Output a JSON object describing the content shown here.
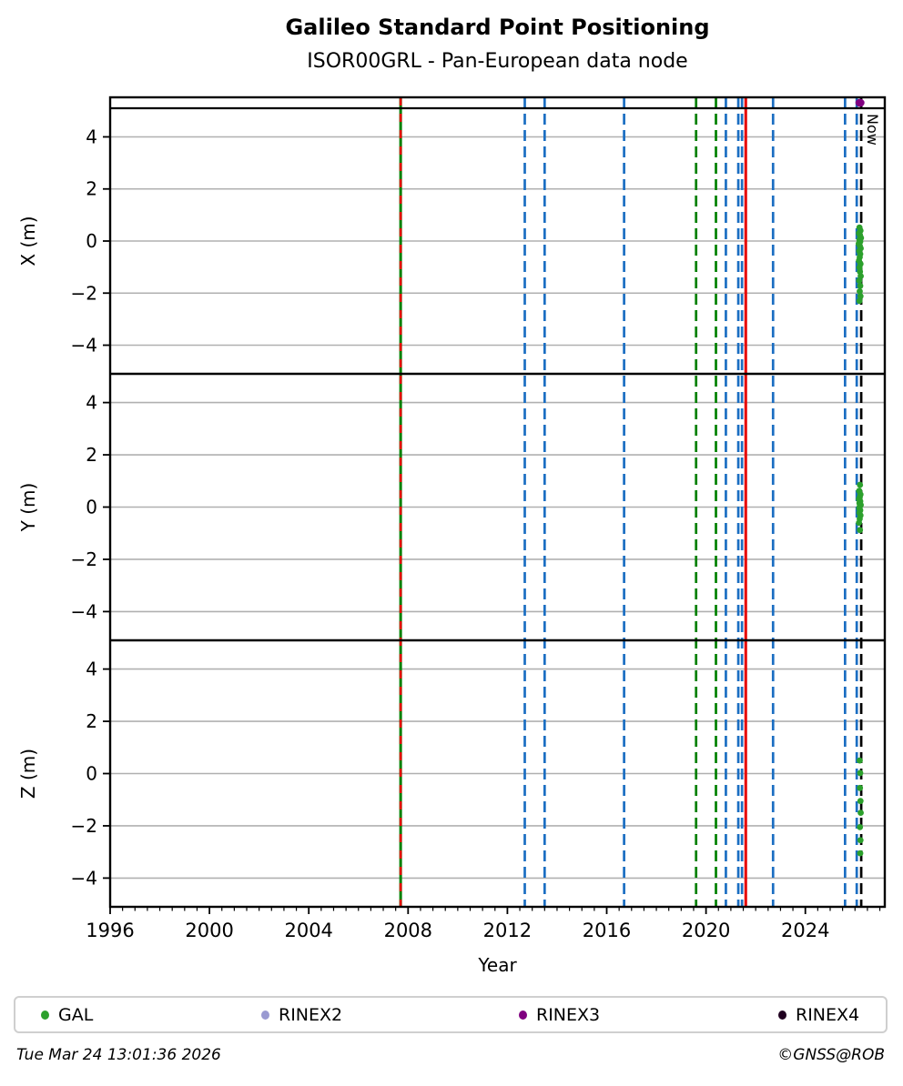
{
  "title": "Galileo Standard Point Positioning",
  "subtitle": "ISOR00GRL - Pan-European data node",
  "footer": {
    "timestamp": "Tue Mar 24 13:01:36 2026",
    "credit": "©GNSS@ROB"
  },
  "legend": [
    {
      "label": "GAL",
      "color": "#2ca02c"
    },
    {
      "label": "RINEX2",
      "color": "#9a9ad1"
    },
    {
      "label": "RINEX3",
      "color": "#800080"
    },
    {
      "label": "RINEX4",
      "color": "#200020"
    }
  ],
  "colors": {
    "blue_line": "#1b6ec2",
    "green_line": "#008000",
    "red_line": "#e60000",
    "black_line": "#000000",
    "grid": "#b0b0b0",
    "frame": "#000000",
    "points": "#2ca02c",
    "rinex3": "#800080"
  },
  "chart_data": {
    "type": "scatter",
    "title": "Galileo Standard Point Positioning",
    "subtitle": "ISOR00GRL - Pan-European data node",
    "xlabel": "Year",
    "xlim": [
      1996,
      2027.2
    ],
    "xticks": [
      1996,
      2000,
      2004,
      2008,
      2012,
      2016,
      2020,
      2024
    ],
    "minor_tick_step": 0.5,
    "ylim": [
      -5.1,
      5.1
    ],
    "yticks": [
      4,
      2,
      0,
      -2,
      -4
    ],
    "grid": true,
    "now": {
      "year": 2026.25,
      "label": "Now"
    },
    "availability_strip": {
      "rinex3_marker_year": 2026.2
    },
    "vlines": [
      {
        "year": 2007.7,
        "color": "green",
        "style": "solid",
        "width": 3
      },
      {
        "year": 2007.7,
        "color": "red",
        "style": "dashed",
        "width": 2.6
      },
      {
        "year": 2012.7,
        "color": "blue",
        "style": "dashed"
      },
      {
        "year": 2013.5,
        "color": "blue",
        "style": "dashed"
      },
      {
        "year": 2016.7,
        "color": "blue",
        "style": "dashed"
      },
      {
        "year": 2019.6,
        "color": "green",
        "style": "dashed"
      },
      {
        "year": 2020.4,
        "color": "green",
        "style": "dashed"
      },
      {
        "year": 2020.8,
        "color": "blue",
        "style": "dashed"
      },
      {
        "year": 2021.3,
        "color": "blue",
        "style": "dashed"
      },
      {
        "year": 2021.45,
        "color": "blue",
        "style": "dashed"
      },
      {
        "year": 2021.6,
        "color": "red",
        "style": "solid",
        "width": 3
      },
      {
        "year": 2022.7,
        "color": "blue",
        "style": "dashed"
      },
      {
        "year": 2025.6,
        "color": "blue",
        "style": "dashed"
      },
      {
        "year": 2026.07,
        "color": "blue",
        "style": "dashed"
      },
      {
        "year": 2026.25,
        "color": "black",
        "style": "dashed"
      }
    ],
    "panels": [
      {
        "label": "X (m)",
        "series": "GAL",
        "points": [
          [
            2026.18,
            0.52
          ],
          [
            2026.22,
            0.4
          ],
          [
            2026.16,
            0.3
          ],
          [
            2026.2,
            0.22
          ],
          [
            2026.24,
            0.12
          ],
          [
            2026.18,
            0.05
          ],
          [
            2026.21,
            -0.02
          ],
          [
            2026.15,
            -0.1
          ],
          [
            2026.19,
            -0.18
          ],
          [
            2026.23,
            -0.28
          ],
          [
            2026.17,
            -0.38
          ],
          [
            2026.21,
            -0.5
          ],
          [
            2026.19,
            -0.62
          ],
          [
            2026.16,
            -0.75
          ],
          [
            2026.22,
            -0.88
          ],
          [
            2026.18,
            -1.02
          ],
          [
            2026.2,
            -1.18
          ],
          [
            2026.23,
            -1.35
          ],
          [
            2026.17,
            -1.52
          ],
          [
            2026.21,
            -1.72
          ],
          [
            2026.19,
            -1.93
          ],
          [
            2026.22,
            -2.12
          ],
          [
            2026.18,
            -2.3
          ]
        ]
      },
      {
        "label": "Y (m)",
        "series": "GAL",
        "points": [
          [
            2026.2,
            0.85
          ],
          [
            2026.17,
            0.62
          ],
          [
            2026.22,
            0.48
          ],
          [
            2026.19,
            0.38
          ],
          [
            2026.16,
            0.3
          ],
          [
            2026.21,
            0.22
          ],
          [
            2026.18,
            0.15
          ],
          [
            2026.23,
            0.08
          ],
          [
            2026.19,
            0.02
          ],
          [
            2026.17,
            -0.05
          ],
          [
            2026.21,
            -0.12
          ],
          [
            2026.18,
            -0.22
          ],
          [
            2026.22,
            -0.32
          ],
          [
            2026.19,
            -0.45
          ],
          [
            2026.16,
            -0.6
          ],
          [
            2026.2,
            -0.88
          ]
        ]
      },
      {
        "label": "Z (m)",
        "series": "GAL",
        "points": [
          [
            2026.19,
            0.5
          ],
          [
            2026.21,
            0.02
          ],
          [
            2026.2,
            -0.55
          ],
          [
            2026.22,
            -1.05
          ],
          [
            2026.23,
            -1.5
          ],
          [
            2026.2,
            -2.05
          ],
          [
            2026.22,
            -2.55
          ],
          [
            2026.21,
            -3.05
          ]
        ]
      }
    ]
  }
}
